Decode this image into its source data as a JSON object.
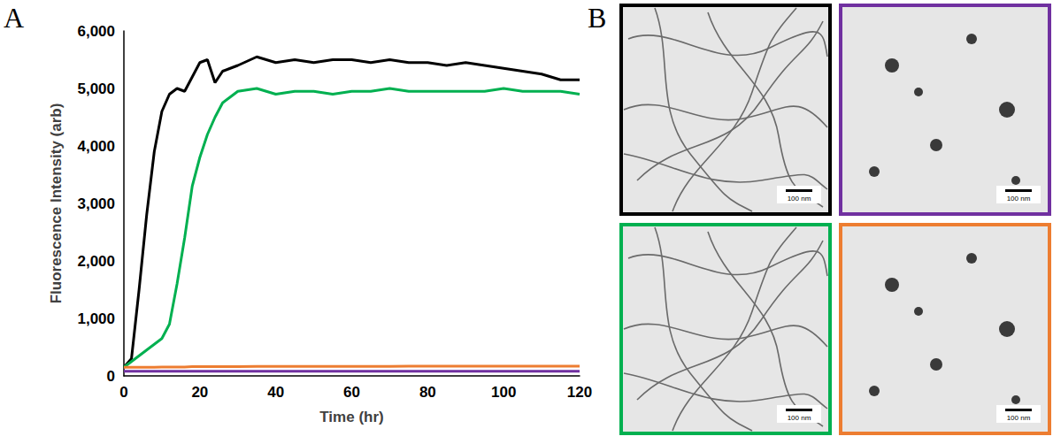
{
  "chart_data": {
    "type": "line",
    "panel_label": "A",
    "x_label": "Time (hr)",
    "y_label": "Fluorescence Intensity (arb)",
    "xlim": [
      0,
      120
    ],
    "xticks": [
      0,
      20,
      40,
      60,
      80,
      100,
      120
    ],
    "ylim": [
      0,
      6000
    ],
    "yticks": [
      0,
      1000,
      2000,
      3000,
      4000,
      5000,
      6000
    ],
    "grid": false,
    "x": [
      0,
      2,
      4,
      6,
      8,
      10,
      12,
      14,
      16,
      18,
      20,
      22,
      23,
      24,
      26,
      28,
      30,
      35,
      40,
      45,
      50,
      55,
      60,
      65,
      70,
      75,
      80,
      85,
      90,
      95,
      100,
      105,
      110,
      115,
      120
    ],
    "series": [
      {
        "color": "#000000",
        "values": [
          150,
          300,
          1500,
          2800,
          3900,
          4600,
          4900,
          5000,
          4950,
          5200,
          5450,
          5500,
          5300,
          5100,
          5300,
          5350,
          5400,
          5550,
          5450,
          5500,
          5450,
          5500,
          5500,
          5450,
          5500,
          5450,
          5450,
          5400,
          5450,
          5400,
          5350,
          5300,
          5250,
          5150,
          5150
        ]
      },
      {
        "color": "#00b050",
        "values": [
          150,
          250,
          350,
          450,
          550,
          650,
          900,
          1600,
          2400,
          3300,
          3800,
          4200,
          4350,
          4500,
          4750,
          4850,
          4950,
          5000,
          4900,
          4950,
          4950,
          4900,
          4950,
          4950,
          5000,
          4950,
          4950,
          4950,
          4950,
          4950,
          5000,
          4950,
          4950,
          4950,
          4900
        ]
      },
      {
        "color": "#ed7d31",
        "values": [
          150,
          150,
          150,
          150,
          150,
          155,
          155,
          155,
          155,
          160,
          160,
          160,
          160,
          160,
          160,
          160,
          160,
          165,
          165,
          165,
          165,
          165,
          165,
          165,
          165,
          170,
          170,
          170,
          170,
          170,
          170,
          170,
          170,
          170,
          170
        ]
      },
      {
        "color": "#7030a0",
        "values": [
          80,
          80,
          80,
          80,
          80,
          80,
          80,
          80,
          80,
          80,
          80,
          80,
          80,
          80,
          80,
          80,
          80,
          80,
          80,
          80,
          80,
          80,
          80,
          80,
          80,
          80,
          80,
          80,
          80,
          80,
          80,
          80,
          80,
          80,
          80
        ]
      }
    ]
  },
  "images": {
    "panel_label": "B",
    "items": [
      {
        "border_color": "#000000",
        "scale_bar_label": "100 nm"
      },
      {
        "border_color": "#7030a0",
        "scale_bar_label": "100 nm"
      },
      {
        "border_color": "#00b050",
        "scale_bar_label": "100 nm"
      },
      {
        "border_color": "#ed7d31",
        "scale_bar_label": "100 nm"
      }
    ]
  }
}
